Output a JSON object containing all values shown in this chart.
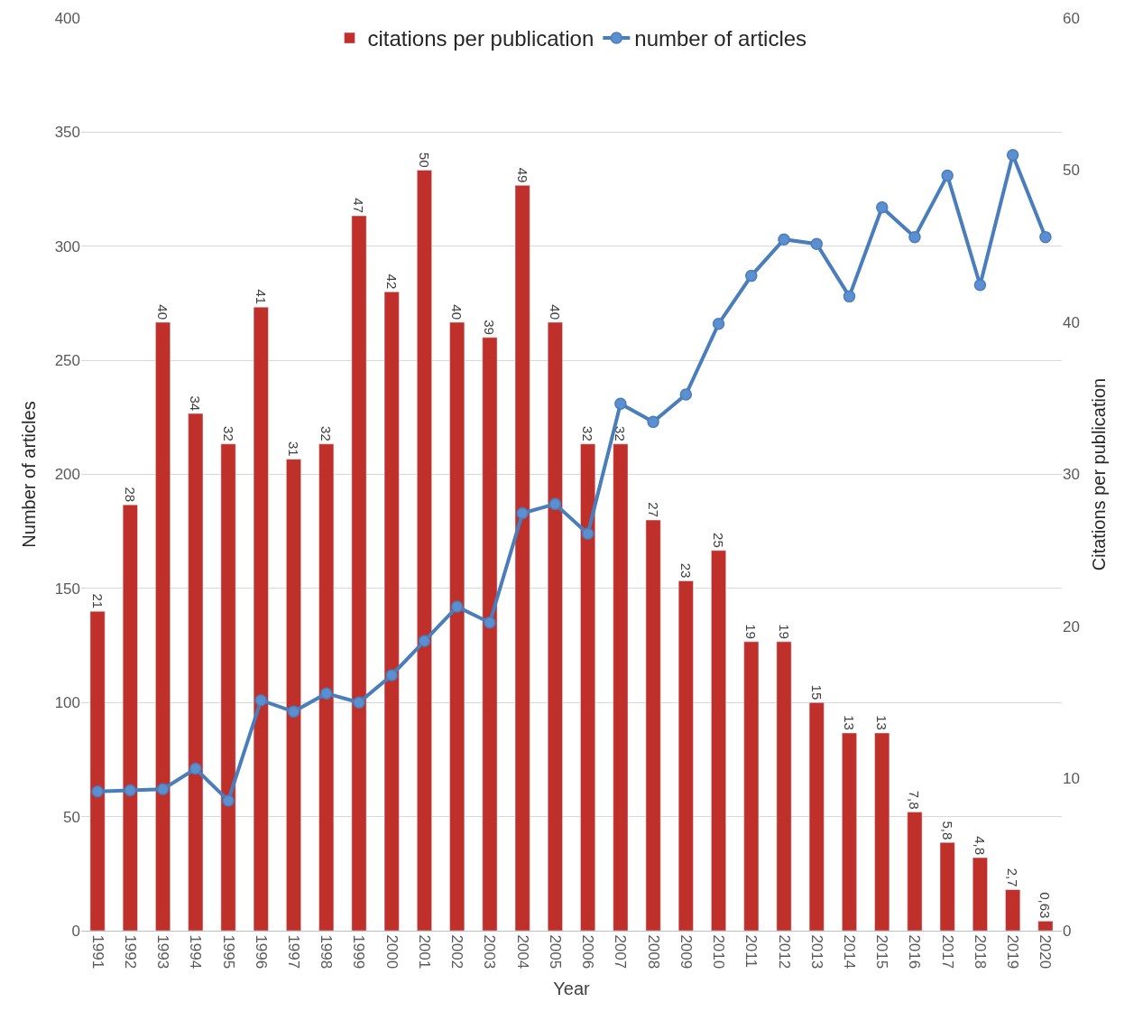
{
  "chart_data": {
    "type": "bar",
    "xlabel": "Year",
    "ylabel": "Number of articles",
    "y2label": "Citations per publication",
    "categories": [
      "1991",
      "1992",
      "1993",
      "1994",
      "1995",
      "1996",
      "1997",
      "1998",
      "1999",
      "2000",
      "2001",
      "2002",
      "2003",
      "2004",
      "2005",
      "2006",
      "2007",
      "2008",
      "2009",
      "2010",
      "2011",
      "2012",
      "2013",
      "2014",
      "2015",
      "2016",
      "2017",
      "2018",
      "2019",
      "2020"
    ],
    "series": [
      {
        "name": "citations per publication",
        "axis": "y2",
        "color": "#c0302b",
        "values": [
          21,
          28,
          40,
          34,
          32,
          41,
          31,
          32,
          47,
          42,
          50,
          40,
          39,
          49,
          40,
          32,
          32,
          27,
          23,
          25,
          19,
          19,
          15,
          13,
          13,
          7.8,
          5.8,
          4.8,
          2.7,
          0.63
        ],
        "value_labels": [
          "21",
          "28",
          "40",
          "34",
          "32",
          "41",
          "31",
          "32",
          "47",
          "42",
          "50",
          "40",
          "39",
          "49",
          "40",
          "32",
          "32",
          "27",
          "23",
          "25",
          "19",
          "19",
          "15",
          "13",
          "13",
          "7,8",
          "5,8",
          "4,8",
          "2,7",
          "0,63"
        ]
      },
      {
        "name": "number of articles",
        "type": "line",
        "axis": "y",
        "color": "#4a7ebb",
        "marker": "circle",
        "values": [
          61,
          61.5,
          62,
          71,
          57,
          101,
          96,
          104,
          100,
          112,
          127,
          142,
          135,
          183,
          187,
          174,
          231,
          223,
          235,
          266,
          287,
          303,
          301,
          278,
          317,
          304,
          331,
          283,
          340,
          304
        ]
      }
    ],
    "ylim": [
      0,
      400
    ],
    "yticks": [
      0,
      50,
      100,
      150,
      200,
      250,
      300,
      350,
      400
    ],
    "y2lim": [
      0,
      60
    ],
    "y2ticks": [
      0,
      10,
      20,
      30,
      40,
      50,
      60
    ],
    "grid": "y",
    "legend": "top"
  }
}
